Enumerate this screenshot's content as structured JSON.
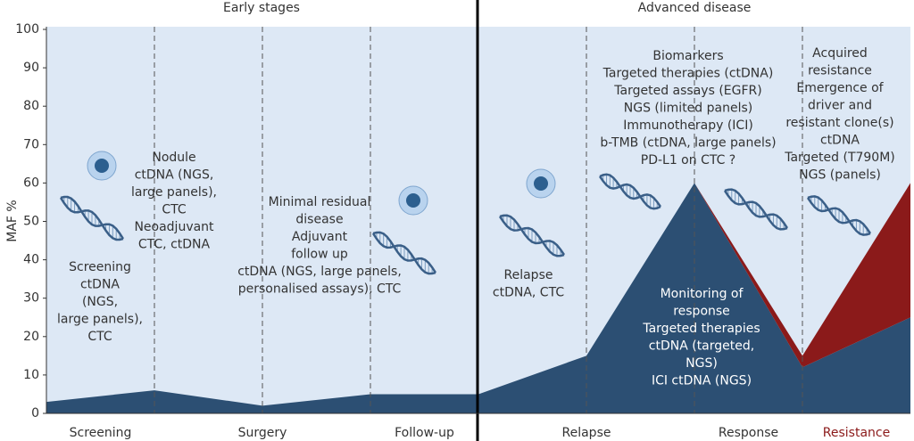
{
  "chart_data": {
    "type": "area",
    "sections": [
      "Early stages",
      "Advanced disease"
    ],
    "y_label": "MAF %",
    "categories": [
      "Screening",
      "Surgery",
      "Follow-up",
      "Relapse",
      "Response",
      "Resistance"
    ],
    "series": [
      {
        "color": "#2c4f73",
        "x": [
          0,
          1,
          2,
          3,
          4,
          5,
          6,
          7,
          8
        ],
        "values": [
          3,
          6,
          2,
          5,
          5,
          15,
          60,
          12,
          25
        ]
      },
      {
        "color": "#8b1a1a",
        "stacked": true,
        "x": [
          6,
          7,
          8
        ],
        "values": [
          0,
          3,
          35
        ]
      }
    ],
    "xlim": [
      0,
      8
    ],
    "ylim": [
      0,
      100
    ],
    "yticks": [
      0,
      10,
      20,
      30,
      40,
      50,
      60,
      70,
      80,
      90,
      100
    ],
    "annotations": [
      [
        "Screening",
        "ctDNA",
        "(NGS,",
        "large panels),",
        "CTC"
      ],
      [
        "Nodule",
        "ctDNA (NGS,",
        "large panels),",
        "CTC",
        "Neoadjuvant",
        "CTC, ctDNA"
      ],
      [
        "Minimal residual",
        "disease",
        "Adjuvant",
        "follow up",
        "ctDNA (NGS, large panels,",
        "personalised assays), CTC"
      ],
      [
        "Relapse",
        "ctDNA, CTC"
      ],
      [
        "Biomarkers",
        "Targeted therapies (ctDNA)",
        "Targeted assays (EGFR)",
        "NGS (limited panels)",
        "Immunotherapy (ICI)",
        "b-TMB (ctDNA, large panels)",
        "PD-L1 on CTC ?"
      ],
      [
        "Acquired",
        "resistance",
        "Emergence of",
        "driver and",
        "resistant clone(s)",
        "ctDNA",
        "Targeted (T790M)",
        "NGS (panels)"
      ],
      [
        "Monitoring of",
        "response",
        "Targeted therapies",
        "ctDNA (targeted,",
        "NGS)",
        "ICI ctDNA (NGS)"
      ]
    ]
  }
}
